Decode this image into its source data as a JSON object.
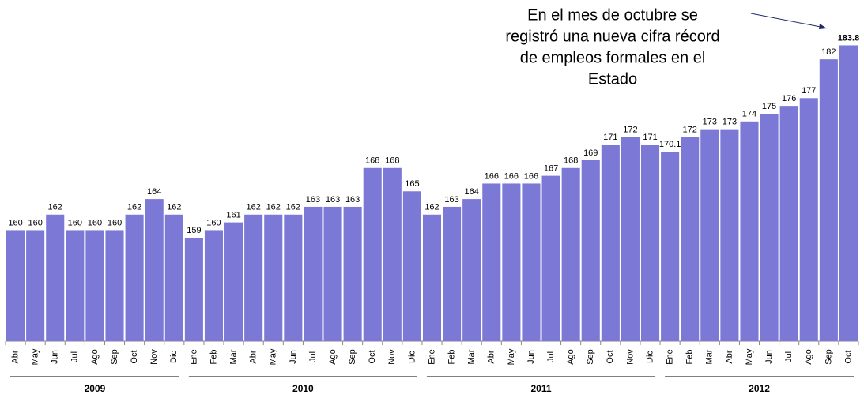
{
  "chart_data": {
    "type": "bar",
    "annotation": [
      "En el mes de octubre se",
      "registró una nueva cifra récord",
      "de empleos formales en el",
      "Estado"
    ],
    "categories": [
      "Abr",
      "May",
      "Jun",
      "Jul",
      "Ago",
      "Sep",
      "Oct",
      "Nov",
      "Dic",
      "Ene",
      "Feb",
      "Mar",
      "Abr",
      "May",
      "Jun",
      "Jul",
      "Ago",
      "Sep",
      "Oct",
      "Nov",
      "Dic",
      "Ene",
      "Feb",
      "Mar",
      "Abr",
      "May",
      "Jun",
      "Jul",
      "Ago",
      "Sep",
      "Oct",
      "Nov",
      "Dic",
      "Ene",
      "Feb",
      "Mar",
      "Abr",
      "May",
      "Jun",
      "Jul",
      "Ago",
      "Sep",
      "Oct"
    ],
    "groups": [
      {
        "label": "2009",
        "size": 9
      },
      {
        "label": "2010",
        "size": 12
      },
      {
        "label": "2011",
        "size": 12
      },
      {
        "label": "2012",
        "size": 10
      }
    ],
    "values": [
      160,
      160,
      162,
      160,
      160,
      160,
      162,
      164,
      162,
      159,
      160,
      161,
      162,
      162,
      162,
      163,
      163,
      163,
      168,
      168,
      165,
      162,
      163,
      164,
      166,
      166,
      166,
      167,
      168,
      169,
      171,
      172,
      171,
      170.1,
      172,
      173,
      173,
      174,
      175,
      176,
      177,
      182,
      183.8
    ],
    "color": "#7b78d6",
    "ylim": [
      145.7,
      184
    ]
  }
}
